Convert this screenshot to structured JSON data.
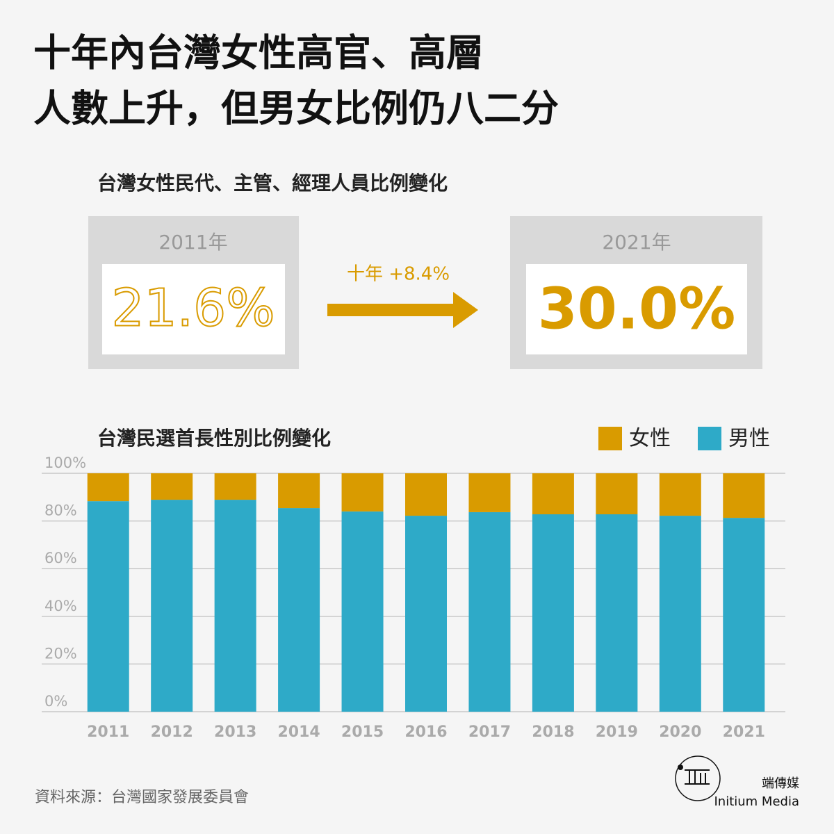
{
  "title_lines": [
    "十年內台灣女性高官、高層",
    "人數上升，但男女比例仍八二分"
  ],
  "subtitle": "台灣女性民代、主管、經理人員比例變化",
  "cards": [
    {
      "year": "2011年",
      "value": "21.6%"
    },
    {
      "year": "2021年",
      "value": "30.0%"
    }
  ],
  "arrow_label": "十年 +8.4%",
  "source": "資料來源：台灣國家發展委員會",
  "logo": {
    "name": "端傳媒",
    "english": "Initium Media"
  },
  "chart_data": {
    "type": "stacked_bar",
    "title": "台灣民選首長性別比例變化",
    "categories": [
      "2011",
      "2012",
      "2013",
      "2014",
      "2015",
      "2016",
      "2017",
      "2018",
      "2019",
      "2020",
      "2021"
    ],
    "series": [
      {
        "name": "男性",
        "color": "#2eaac8",
        "values": [
          88.3,
          88.9,
          88.9,
          85.4,
          84.0,
          82.2,
          83.7,
          82.8,
          82.8,
          82.2,
          81.3
        ]
      },
      {
        "name": "女性",
        "color": "#d99b00",
        "values": [
          11.7,
          11.1,
          11.1,
          14.6,
          16.0,
          17.8,
          16.3,
          17.2,
          17.2,
          17.8,
          18.7
        ]
      }
    ],
    "ylim": [
      0,
      100
    ],
    "yticks": [
      {
        "value": 0,
        "label": "0%"
      },
      {
        "value": 20,
        "label": "20%"
      },
      {
        "value": 40,
        "label": "40%"
      },
      {
        "value": 60,
        "label": "60%"
      },
      {
        "value": 80,
        "label": "80%"
      },
      {
        "value": 100,
        "label": "100%"
      }
    ],
    "grid": true
  }
}
